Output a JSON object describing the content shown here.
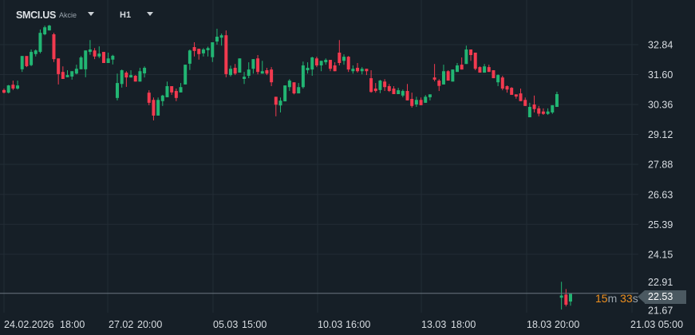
{
  "header": {
    "symbol": "SMCI.US",
    "instrument_type": "Akcie",
    "timeframe": "H1",
    "icons": {
      "symbol_dropdown": "caret-down-icon",
      "timeframe_dropdown": "caret-down-icon"
    }
  },
  "price_tag": {
    "value": "22.53"
  },
  "countdown": {
    "minutes": "15",
    "minutes_unit": "m",
    "seconds": "33",
    "seconds_unit": "s"
  },
  "colors": {
    "background": "#161f27",
    "grid": "#222c35",
    "up": "#22b573",
    "down": "#f23a4f",
    "countdown": "#f0901e",
    "price_line": "#6b7780"
  },
  "chart_data": {
    "type": "candlestick",
    "title": "",
    "current_price": 22.53,
    "y_ticks": [
      "32.84",
      "31.60",
      "30.36",
      "29.12",
      "27.88",
      "26.63",
      "25.39",
      "24.15",
      "22.91",
      "21.67"
    ],
    "x_ticks": [
      "24.02.2026",
      "18:00",
      "27.02",
      "20:00",
      "05.03",
      "15:00",
      "10.03",
      "16:00",
      "13.03",
      "18:00",
      "18.03",
      "20:00",
      "21.03 05:00"
    ],
    "grid": true,
    "ohlc_order": [
      "open",
      "high",
      "low",
      "close"
    ],
    "candles": [
      [
        30.96,
        31.02,
        30.82,
        30.85
      ],
      [
        30.85,
        31.17,
        30.82,
        31.15
      ],
      [
        31.18,
        31.35,
        30.96,
        31.02
      ],
      [
        31.02,
        31.35,
        30.98,
        31.15
      ],
      [
        31.82,
        32.37,
        31.71,
        32.37
      ],
      [
        32.37,
        32.37,
        31.91,
        31.95
      ],
      [
        31.99,
        32.64,
        31.95,
        32.54
      ],
      [
        32.45,
        32.64,
        32.35,
        32.6
      ],
      [
        32.54,
        33.47,
        32.48,
        33.33
      ],
      [
        33.27,
        33.63,
        33.23,
        33.56
      ],
      [
        33.43,
        33.66,
        33.43,
        33.63
      ],
      [
        33.27,
        33.33,
        32.12,
        32.24
      ],
      [
        32.27,
        32.27,
        31.19,
        31.62
      ],
      [
        31.71,
        31.94,
        31.42,
        31.42
      ],
      [
        31.49,
        31.78,
        31.49,
        31.58
      ],
      [
        31.52,
        31.74,
        31.39,
        31.74
      ],
      [
        31.64,
        32.01,
        31.61,
        31.84
      ],
      [
        31.82,
        32.37,
        31.82,
        32.31
      ],
      [
        31.82,
        32.6,
        31.49,
        32.6
      ],
      [
        32.54,
        33.03,
        32.42,
        32.64
      ],
      [
        32.6,
        32.7,
        32.24,
        32.35
      ],
      [
        32.35,
        32.77,
        32.28,
        32.47
      ],
      [
        32.54,
        32.54,
        32.08,
        32.08
      ],
      [
        32.08,
        32.51,
        32.08,
        32.27
      ],
      [
        32.22,
        32.42,
        32.02,
        32.38
      ],
      [
        30.63,
        31.64,
        30.53,
        31.25
      ],
      [
        31.21,
        31.81,
        31.06,
        31.78
      ],
      [
        31.68,
        31.74,
        31.09,
        31.48
      ],
      [
        31.48,
        31.78,
        31.48,
        31.58
      ],
      [
        31.55,
        31.58,
        31.31,
        31.31
      ],
      [
        31.31,
        31.88,
        31.31,
        31.74
      ],
      [
        31.65,
        31.94,
        31.48,
        31.88
      ],
      [
        30.85,
        30.95,
        30.33,
        30.43
      ],
      [
        30.55,
        30.65,
        29.7,
        29.9
      ],
      [
        29.9,
        30.65,
        29.9,
        30.55
      ],
      [
        30.5,
        30.76,
        30.3,
        30.73
      ],
      [
        30.66,
        31.31,
        30.66,
        31.12
      ],
      [
        31.12,
        31.12,
        30.76,
        30.86
      ],
      [
        30.92,
        31.02,
        30.5,
        30.63
      ],
      [
        30.86,
        31.25,
        30.86,
        31.08
      ],
      [
        31.19,
        32.01,
        31.19,
        32.01
      ],
      [
        32.05,
        32.64,
        31.79,
        32.6
      ],
      [
        32.74,
        32.94,
        32.35,
        32.58
      ],
      [
        32.67,
        32.67,
        32.22,
        32.45
      ],
      [
        32.48,
        32.7,
        32.35,
        32.64
      ],
      [
        32.61,
        32.76,
        32.35,
        32.7
      ],
      [
        32.32,
        32.94,
        32.12,
        32.94
      ],
      [
        32.97,
        33.5,
        32.84,
        33.17
      ],
      [
        33.13,
        33.3,
        32.8,
        33.23
      ],
      [
        33.23,
        33.43,
        31.49,
        31.62
      ],
      [
        31.58,
        31.97,
        31.52,
        31.84
      ],
      [
        31.88,
        32.04,
        31.58,
        31.64
      ],
      [
        31.68,
        32.27,
        31.68,
        32.27
      ],
      [
        31.42,
        31.71,
        31.21,
        31.51
      ],
      [
        31.55,
        32.11,
        31.45,
        31.81
      ],
      [
        31.84,
        32.24,
        31.64,
        32.24
      ],
      [
        32.27,
        32.41,
        31.61,
        31.71
      ],
      [
        31.64,
        32.17,
        31.64,
        31.74
      ],
      [
        31.78,
        31.88,
        31.58,
        31.64
      ],
      [
        31.81,
        31.91,
        31.12,
        31.28
      ],
      [
        30.68,
        30.68,
        29.87,
        30.35
      ],
      [
        30.32,
        30.65,
        30.03,
        30.52
      ],
      [
        30.49,
        31.15,
        30.49,
        31.15
      ],
      [
        31.08,
        31.41,
        30.92,
        31.35
      ],
      [
        31.28,
        31.28,
        30.78,
        30.82
      ],
      [
        30.82,
        31.25,
        30.82,
        31.08
      ],
      [
        31.08,
        32.14,
        31.02,
        31.98
      ],
      [
        31.78,
        32.11,
        31.64,
        31.88
      ],
      [
        31.81,
        32.34,
        31.55,
        32.31
      ],
      [
        32.27,
        32.34,
        31.91,
        31.98
      ],
      [
        31.98,
        32.17,
        31.74,
        32.17
      ],
      [
        32.11,
        32.27,
        32.01,
        32.21
      ],
      [
        32.21,
        32.21,
        31.74,
        31.84
      ],
      [
        31.98,
        32.11,
        31.74,
        31.74
      ],
      [
        32.51,
        33.03,
        31.98,
        32.08
      ],
      [
        32.17,
        32.44,
        32.01,
        32.34
      ],
      [
        32.34,
        32.37,
        31.71,
        31.81
      ],
      [
        31.74,
        31.98,
        31.64,
        31.84
      ],
      [
        31.88,
        32.08,
        31.68,
        31.74
      ],
      [
        31.74,
        31.91,
        31.61,
        31.84
      ],
      [
        31.84,
        31.84,
        31.58,
        31.74
      ],
      [
        31.45,
        31.78,
        30.85,
        30.88
      ],
      [
        31.02,
        31.25,
        30.85,
        30.92
      ],
      [
        30.96,
        31.38,
        30.83,
        31.35
      ],
      [
        31.31,
        31.41,
        30.92,
        31.08
      ],
      [
        31.12,
        31.21,
        30.88,
        30.92
      ],
      [
        31.02,
        31.12,
        30.79,
        30.79
      ],
      [
        30.79,
        31.05,
        30.79,
        30.95
      ],
      [
        30.73,
        30.98,
        30.66,
        30.92
      ],
      [
        30.92,
        31.21,
        30.53,
        30.53
      ],
      [
        30.59,
        30.85,
        30.23,
        30.3
      ],
      [
        30.36,
        30.68,
        30.26,
        30.55
      ],
      [
        30.55,
        30.65,
        30.33,
        30.33
      ],
      [
        30.43,
        30.75,
        30.43,
        30.68
      ],
      [
        30.66,
        30.78,
        30.53,
        30.78
      ],
      [
        31.48,
        32.04,
        31.32,
        31.39
      ],
      [
        31.35,
        31.41,
        30.92,
        31.13
      ],
      [
        31.19,
        32.01,
        31.19,
        31.74
      ],
      [
        31.74,
        31.78,
        31.35,
        31.35
      ],
      [
        31.31,
        31.81,
        31.31,
        31.81
      ],
      [
        31.71,
        32.08,
        31.71,
        31.98
      ],
      [
        32.01,
        32.31,
        31.81,
        31.81
      ],
      [
        32.04,
        32.8,
        32.04,
        32.64
      ],
      [
        32.64,
        32.64,
        32.17,
        32.41
      ],
      [
        32.51,
        32.51,
        31.78,
        31.84
      ],
      [
        31.91,
        31.94,
        31.68,
        31.68
      ],
      [
        31.68,
        32.04,
        31.68,
        31.94
      ],
      [
        31.91,
        32.01,
        31.71,
        31.71
      ],
      [
        31.78,
        31.78,
        31.45,
        31.45
      ],
      [
        31.28,
        31.61,
        31.12,
        31.58
      ],
      [
        31.48,
        31.55,
        30.95,
        31.02
      ],
      [
        31.12,
        31.15,
        30.85,
        30.98
      ],
      [
        31.05,
        31.08,
        30.76,
        30.76
      ],
      [
        30.78,
        30.78,
        30.6,
        30.69
      ],
      [
        30.82,
        31.02,
        30.5,
        30.5
      ],
      [
        30.55,
        30.65,
        30.3,
        30.3
      ],
      [
        29.83,
        30.43,
        29.83,
        30.26
      ],
      [
        30.36,
        30.73,
        30.03,
        30.17
      ],
      [
        30.2,
        30.3,
        29.87,
        29.98
      ],
      [
        30.07,
        30.2,
        29.93,
        29.97
      ],
      [
        29.97,
        30.2,
        29.93,
        30.07
      ],
      [
        30.03,
        30.33,
        29.97,
        30.33
      ],
      [
        30.26,
        30.89,
        30.26,
        30.79
      ],
      [
        22.35,
        23.01,
        21.86,
        22.44
      ],
      [
        22.48,
        22.71,
        21.99,
        22.06
      ],
      [
        22.19,
        22.51,
        22.02,
        22.51
      ]
    ]
  }
}
